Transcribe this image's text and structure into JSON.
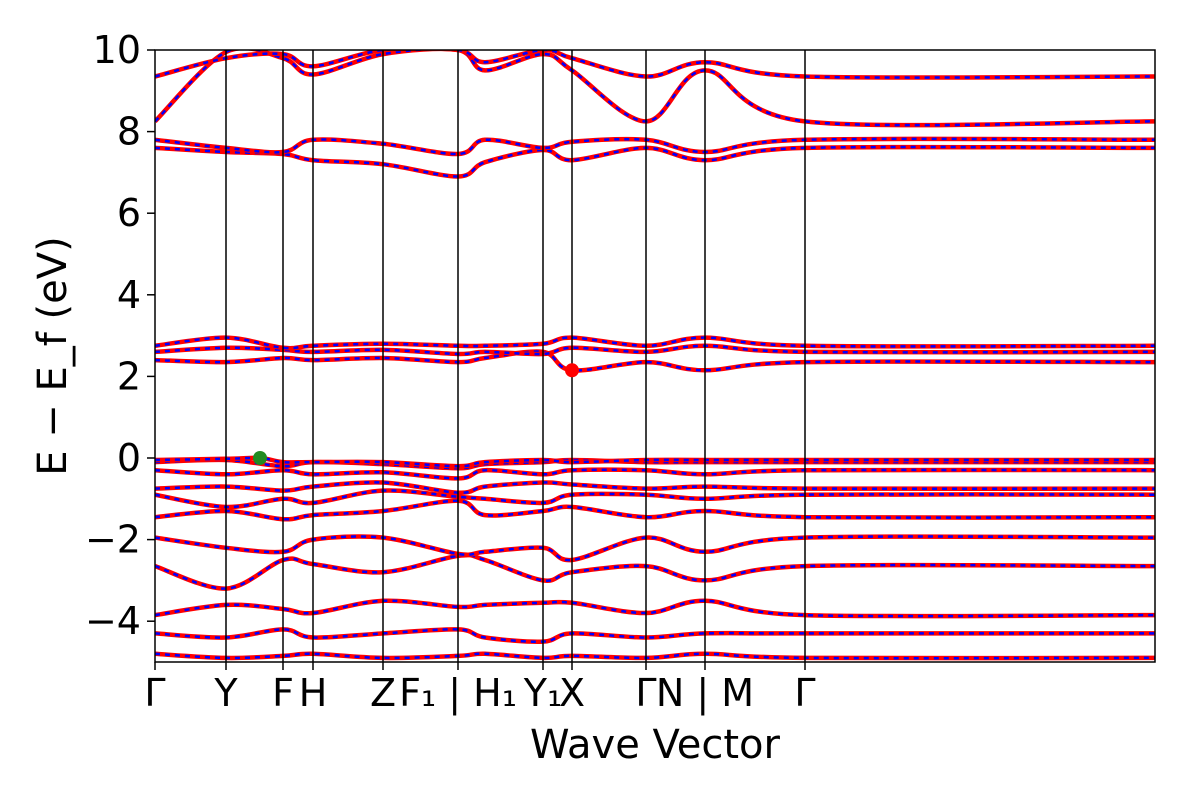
{
  "chart_data": {
    "type": "line",
    "title": "",
    "xlabel": "Wave Vector",
    "ylabel": "E − E_f (eV)",
    "ylim": [
      -5,
      10
    ],
    "y_ticks": [
      -4,
      -2,
      0,
      2,
      4,
      6,
      8,
      10
    ],
    "y_tick_labels": [
      "−4",
      "−2",
      "0",
      "2",
      "4",
      "6",
      "8",
      "10"
    ],
    "x_range": [
      0,
      1000
    ],
    "k_points": [
      {
        "label": "Γ",
        "x": 0
      },
      {
        "label": "Y",
        "x": 71
      },
      {
        "label": "F",
        "x": 128
      },
      {
        "label": "H",
        "x": 158
      },
      {
        "label": "Z",
        "x": 228
      },
      {
        "label": "F₁ | H₁",
        "x": 303
      },
      {
        "label": "Y₁",
        "x": 388
      },
      {
        "label": "X",
        "x": 417
      },
      {
        "label": "Γ",
        "x": 491
      },
      {
        "label": "N | M",
        "x": 550
      },
      {
        "label": "Γ",
        "x": 650
      }
    ],
    "series_colors": {
      "spin_up": "#ff0000",
      "spin_down": "#0000ff"
    },
    "bands": [
      {
        "x": [
          0,
          71,
          128,
          158,
          228,
          303,
          330,
          388,
          417,
          491,
          550,
          650,
          1000
        ],
        "y": [
          -4.8,
          -4.9,
          -4.85,
          -4.8,
          -4.9,
          -4.85,
          -4.8,
          -4.9,
          -4.85,
          -4.9,
          -4.8,
          -4.9,
          -4.9
        ]
      },
      {
        "x": [
          0,
          71,
          128,
          158,
          228,
          303,
          330,
          388,
          417,
          491,
          550,
          650,
          1000
        ],
        "y": [
          -4.3,
          -4.4,
          -4.2,
          -4.4,
          -4.3,
          -4.2,
          -4.4,
          -4.5,
          -4.3,
          -4.4,
          -4.3,
          -4.3,
          -4.3
        ]
      },
      {
        "x": [
          0,
          71,
          128,
          158,
          228,
          303,
          330,
          388,
          417,
          491,
          550,
          650,
          1000
        ],
        "y": [
          -3.85,
          -3.6,
          -3.7,
          -3.8,
          -3.5,
          -3.65,
          -3.6,
          -3.55,
          -3.55,
          -3.8,
          -3.5,
          -3.85,
          -3.85
        ]
      },
      {
        "x": [
          0,
          71,
          128,
          158,
          228,
          303,
          330,
          388,
          417,
          491,
          550,
          650,
          1000
        ],
        "y": [
          -2.65,
          -3.2,
          -2.5,
          -2.6,
          -2.8,
          -2.4,
          -2.5,
          -3.0,
          -2.8,
          -2.65,
          -3.0,
          -2.65,
          -2.65
        ]
      },
      {
        "x": [
          0,
          71,
          128,
          158,
          228,
          303,
          330,
          388,
          417,
          491,
          550,
          650,
          1000
        ],
        "y": [
          -1.95,
          -2.2,
          -2.3,
          -2.0,
          -1.95,
          -2.35,
          -2.3,
          -2.2,
          -2.5,
          -1.95,
          -2.3,
          -1.95,
          -1.95
        ]
      },
      {
        "x": [
          0,
          71,
          128,
          158,
          228,
          303,
          330,
          388,
          417,
          491,
          550,
          650,
          1000
        ],
        "y": [
          -1.45,
          -1.3,
          -1.5,
          -1.4,
          -1.3,
          -1.05,
          -1.4,
          -1.3,
          -1.2,
          -1.45,
          -1.3,
          -1.45,
          -1.45
        ]
      },
      {
        "x": [
          0,
          71,
          128,
          158,
          228,
          303,
          330,
          388,
          417,
          491,
          550,
          650,
          1000
        ],
        "y": [
          -0.9,
          -1.2,
          -1.0,
          -1.1,
          -0.8,
          -0.95,
          -1.0,
          -1.1,
          -0.9,
          -0.9,
          -1.0,
          -0.9,
          -0.9
        ]
      },
      {
        "x": [
          0,
          71,
          128,
          158,
          228,
          303,
          330,
          388,
          417,
          491,
          550,
          650,
          1000
        ],
        "y": [
          -0.75,
          -0.7,
          -0.8,
          -0.7,
          -0.6,
          -0.85,
          -0.7,
          -0.6,
          -0.65,
          -0.75,
          -0.7,
          -0.75,
          -0.75
        ]
      },
      {
        "x": [
          0,
          71,
          128,
          158,
          228,
          303,
          330,
          388,
          417,
          491,
          550,
          650,
          1000
        ],
        "y": [
          -0.3,
          -0.4,
          -0.3,
          -0.4,
          -0.35,
          -0.5,
          -0.3,
          -0.4,
          -0.3,
          -0.3,
          -0.4,
          -0.3,
          -0.3
        ]
      },
      {
        "x": [
          0,
          71,
          128,
          158,
          228,
          303,
          330,
          388,
          417,
          491,
          550,
          650,
          1000
        ],
        "y": [
          -0.1,
          -0.05,
          -0.2,
          -0.1,
          -0.15,
          -0.25,
          -0.15,
          -0.1,
          -0.05,
          -0.1,
          -0.1,
          -0.1,
          -0.1
        ]
      },
      {
        "x": [
          0,
          71,
          105,
          128,
          158,
          228,
          303,
          330,
          388,
          417,
          491,
          550,
          650,
          1000
        ],
        "y": [
          -0.05,
          -0.02,
          0.0,
          -0.1,
          -0.1,
          -0.1,
          -0.2,
          -0.1,
          -0.05,
          -0.1,
          -0.05,
          -0.05,
          -0.05,
          -0.05
        ]
      },
      {
        "x": [
          0,
          71,
          128,
          158,
          228,
          303,
          330,
          388,
          417,
          491,
          550,
          650,
          1000
        ],
        "y": [
          2.4,
          2.35,
          2.45,
          2.4,
          2.45,
          2.35,
          2.45,
          2.6,
          2.15,
          2.35,
          2.15,
          2.35,
          2.35
        ]
      },
      {
        "x": [
          0,
          71,
          128,
          158,
          228,
          303,
          330,
          388,
          417,
          491,
          550,
          650,
          1000
        ],
        "y": [
          2.6,
          2.7,
          2.65,
          2.6,
          2.65,
          2.55,
          2.6,
          2.55,
          2.7,
          2.6,
          2.75,
          2.6,
          2.6
        ]
      },
      {
        "x": [
          0,
          71,
          128,
          158,
          228,
          303,
          330,
          388,
          417,
          491,
          550,
          650,
          1000
        ],
        "y": [
          2.75,
          2.95,
          2.7,
          2.75,
          2.8,
          2.75,
          2.75,
          2.8,
          2.95,
          2.75,
          2.95,
          2.75,
          2.75
        ]
      },
      {
        "x": [
          0,
          71,
          128,
          158,
          228,
          303,
          330,
          388,
          417,
          491,
          550,
          650,
          1000
        ],
        "y": [
          7.6,
          7.5,
          7.45,
          7.3,
          7.2,
          6.9,
          7.25,
          7.55,
          7.3,
          7.6,
          7.3,
          7.6,
          7.6
        ]
      },
      {
        "x": [
          0,
          71,
          128,
          158,
          228,
          303,
          330,
          388,
          417,
          491,
          550,
          650,
          1000
        ],
        "y": [
          7.8,
          7.6,
          7.5,
          7.8,
          7.7,
          7.45,
          7.8,
          7.6,
          7.75,
          7.8,
          7.5,
          7.8,
          7.8
        ]
      },
      {
        "x": [
          0,
          71,
          128,
          158,
          228,
          303,
          330,
          388,
          417,
          491,
          550,
          650,
          1000
        ],
        "y": [
          8.25,
          9.95,
          9.8,
          9.4,
          9.9,
          10.0,
          9.5,
          9.9,
          9.5,
          8.25,
          9.5,
          8.25,
          8.25
        ]
      },
      {
        "x": [
          0,
          71,
          128,
          158,
          228,
          303,
          330,
          388,
          417,
          491,
          550,
          650,
          1000
        ],
        "y": [
          9.35,
          9.8,
          9.9,
          9.6,
          10.0,
          10.0,
          9.7,
          10.0,
          9.8,
          9.35,
          9.7,
          9.35,
          9.35
        ]
      }
    ],
    "markers": [
      {
        "name": "VBM",
        "x": 105,
        "y": 0.0,
        "color": "#228B22"
      },
      {
        "name": "CBM",
        "x": 417,
        "y": 2.15,
        "color": "#ff0000"
      }
    ],
    "grid": false,
    "legend": "none"
  }
}
